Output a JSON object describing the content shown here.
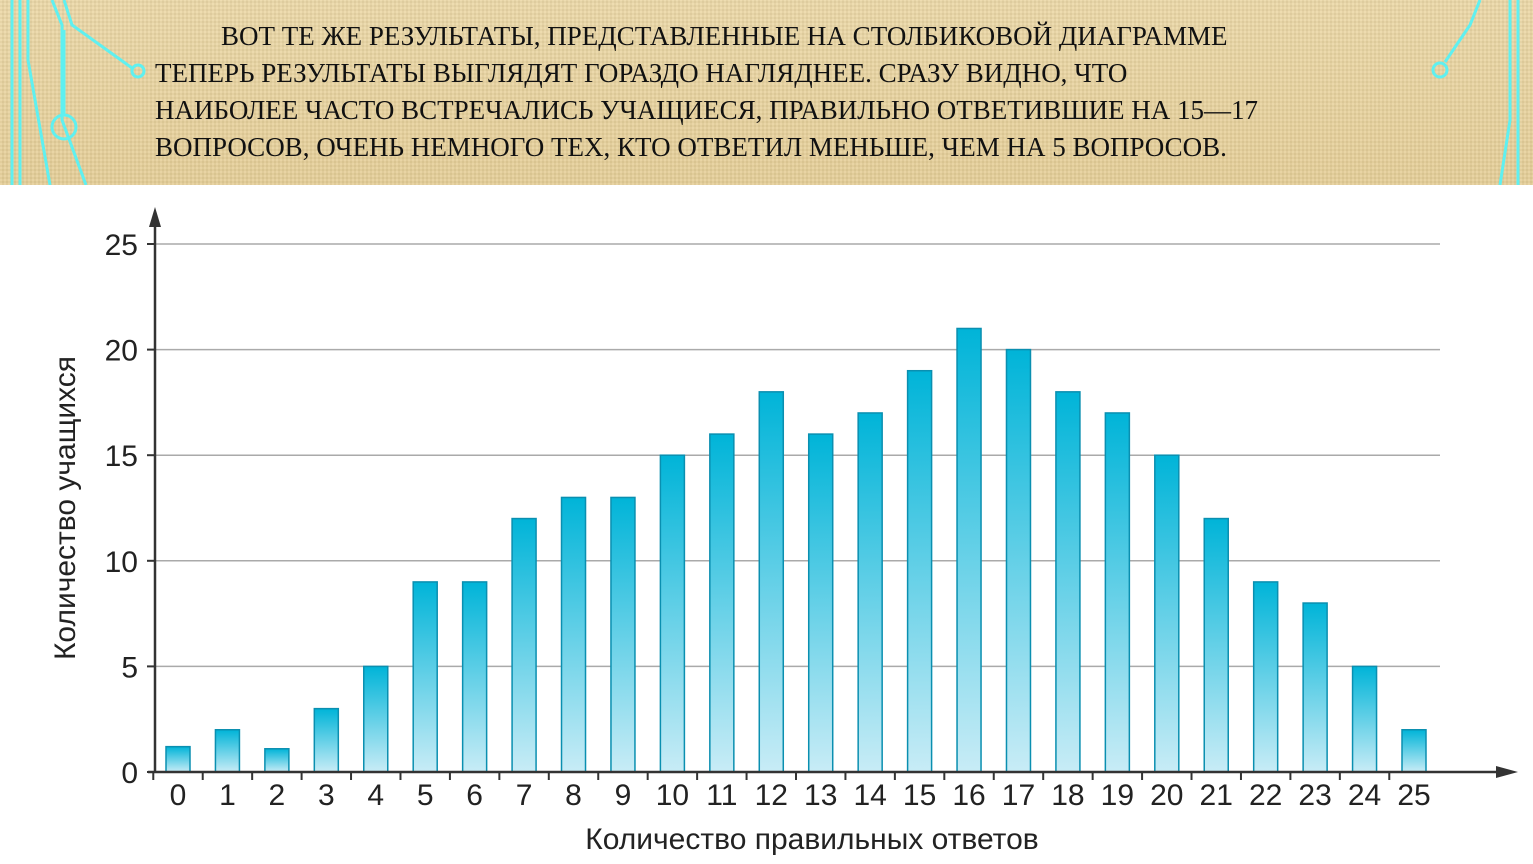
{
  "slide_text": [
    "ВОТ ТЕ ЖЕ РЕЗУЛЬТАТЫ, ПРЕДСТАВЛЕННЫЕ НА СТОЛБИКОВОЙ ДИАГРАММЕ",
    "ТЕПЕРЬ РЕЗУЛЬТАТЫ ВЫГЛЯДЯТ ГОРАЗДО НАГЛЯДНЕЕ. СРАЗУ ВИДНО, ЧТО",
    "НАИБОЛЕЕ ЧАСТО ВСТРЕЧАЛИСЬ УЧАЩИЕСЯ, ПРАВИЛЬНО ОТВЕТИВШИЕ НА 15—17",
    "ВОПРОСОВ, ОЧЕНЬ НЕМНОГО ТЕХ, КТО ОТВЕТИЛ МЕНЬШЕ, ЧЕМ НА 5 ВОПРОСОВ."
  ],
  "colors": {
    "bar_top": "#00b4d8",
    "bar_bottom": "#c8ecf6",
    "bar_stroke": "#0a8fb0",
    "deco": "#5ff0f0"
  },
  "chart_data": {
    "type": "bar",
    "title": "",
    "xlabel": "Количество правильных ответов",
    "ylabel": "Количество учащихся",
    "categories": [
      "0",
      "1",
      "2",
      "3",
      "4",
      "5",
      "6",
      "7",
      "8",
      "9",
      "10",
      "11",
      "12",
      "13",
      "14",
      "15",
      "16",
      "17",
      "18",
      "19",
      "20",
      "21",
      "22",
      "23",
      "24",
      "25"
    ],
    "values": [
      1.2,
      2,
      1.1,
      3,
      5,
      9,
      9,
      12,
      13,
      13,
      15,
      16,
      18,
      16,
      17,
      19,
      21,
      20,
      18,
      17,
      15,
      12,
      9,
      8,
      5,
      2
    ],
    "yticks": [
      "0",
      "5",
      "10",
      "15",
      "20",
      "25"
    ],
    "ylim": [
      0,
      25
    ],
    "grid": true
  }
}
